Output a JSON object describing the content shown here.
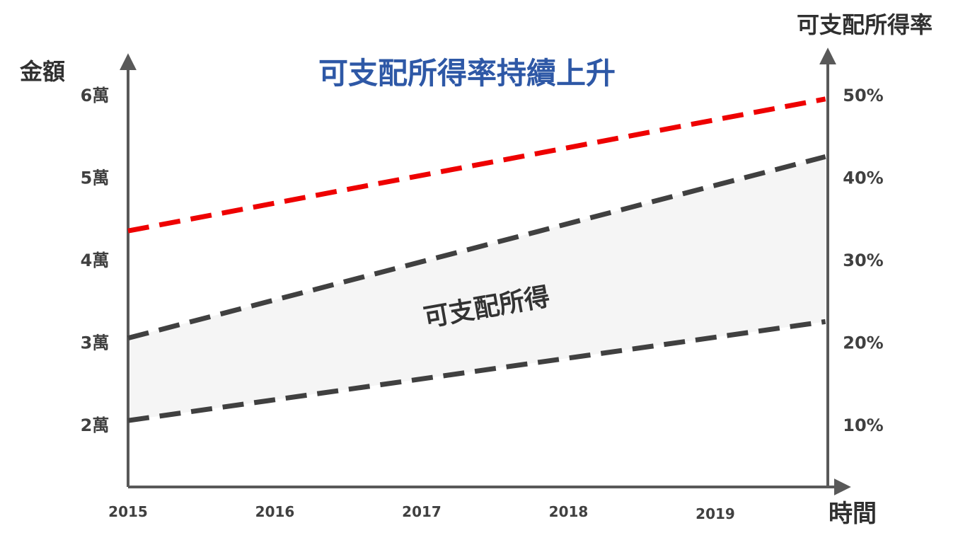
{
  "chart_data": {
    "type": "line",
    "title": "可支配所得率持續上升",
    "y_left_label": "金額",
    "y_right_label": "可支配所得率",
    "x_label": "時間",
    "x_ticks": [
      "2015",
      "2016",
      "2017",
      "2018",
      "2019"
    ],
    "y_left_ticks": [
      "2萬",
      "3萬",
      "4萬",
      "5萬",
      "6萬"
    ],
    "y_left_tick_values": [
      2,
      3,
      4,
      5,
      6
    ],
    "y_right_ticks": [
      "10%",
      "20%",
      "30%",
      "40%",
      "50%"
    ],
    "y_right_tick_values": [
      10,
      20,
      30,
      40,
      50
    ],
    "ylim_left": [
      1.2,
      6.5
    ],
    "ylim_right": [
      2,
      55
    ],
    "band_label": "可支配所得",
    "series": [
      {
        "axis": "right",
        "color": "#ee0000",
        "dashed": true,
        "x": [
          2015,
          2019.75
        ],
        "values": [
          33.5,
          49.5
        ]
      },
      {
        "axis": "left",
        "color": "#404040",
        "dashed": true,
        "x": [
          2015,
          2019.75
        ],
        "values": [
          3.05,
          5.25
        ]
      },
      {
        "axis": "left",
        "color": "#404040",
        "dashed": true,
        "x": [
          2015,
          2019.75
        ],
        "values": [
          2.05,
          3.25
        ]
      }
    ],
    "band_fill": "#f5f5f5",
    "title_color": "#2e58a6",
    "axis_color": "#595959",
    "grid": false
  }
}
